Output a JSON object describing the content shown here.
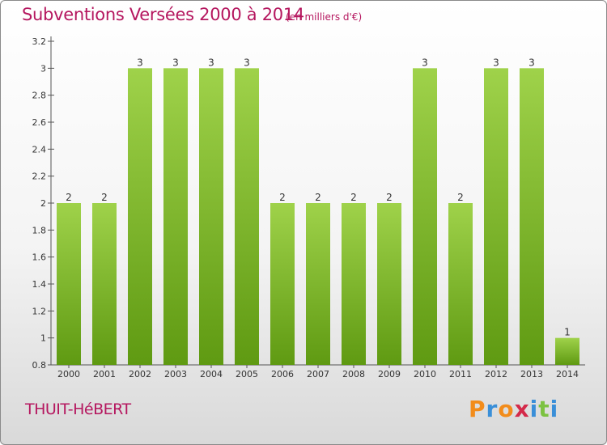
{
  "header": {
    "title": "Subventions Versées 2000 à 2014",
    "unit": "(en milliers d'€)"
  },
  "footer": {
    "commune": "THUIT-HéBERT",
    "logo_letters": [
      "P",
      "r",
      "o",
      "x",
      "i",
      "t",
      "i"
    ]
  },
  "colors": {
    "title": "#b5175f",
    "bar_light": "#9fd24a",
    "bar_dark": "#5f9a12",
    "logo": [
      "#f28c1b",
      "#3a8fd8",
      "#f28c1b",
      "#d42a4a",
      "#3a8fd8",
      "#7cc241",
      "#3a8fd8"
    ]
  },
  "chart_data": {
    "type": "bar",
    "title": "Subventions Versées 2000 à 2014",
    "ylabel": "(en milliers d'€)",
    "categories": [
      "2000",
      "2001",
      "2002",
      "2003",
      "2004",
      "2005",
      "2006",
      "2007",
      "2008",
      "2009",
      "2010",
      "2011",
      "2012",
      "2013",
      "2014"
    ],
    "values": [
      2,
      2,
      3,
      3,
      3,
      3,
      2,
      2,
      2,
      2,
      3,
      2,
      3,
      3,
      1
    ],
    "data_labels": [
      "2",
      "2",
      "3",
      "3",
      "3",
      "3",
      "2",
      "2",
      "2",
      "2",
      "3",
      "2",
      "3",
      "3",
      "1"
    ],
    "y_ticks": [
      0.8,
      1,
      1.2,
      1.4,
      1.6,
      1.8,
      2,
      2.2,
      2.4,
      2.6,
      2.8,
      3,
      3.2
    ],
    "y_tick_labels": [
      "0.8",
      "1",
      "1.2",
      "1.4",
      "1.6",
      "1.8",
      "2",
      "2.2",
      "2.4",
      "2.6",
      "2.8",
      "3",
      "3.2"
    ],
    "ylim": [
      0.8,
      3.2
    ],
    "grid": false,
    "legend": "none"
  }
}
